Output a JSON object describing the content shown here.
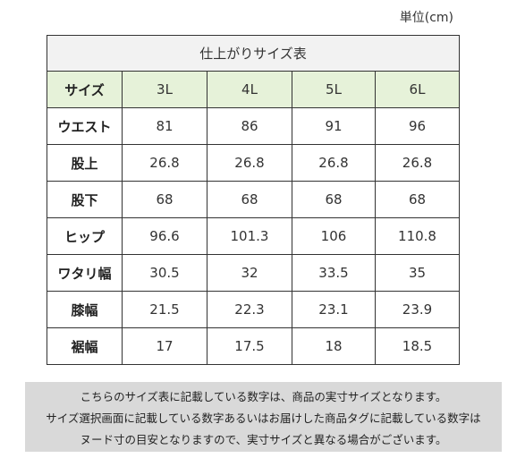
{
  "unit_label": "単位(cm)",
  "table": {
    "caption": "仕上がりサイズ表",
    "header": [
      "サイズ",
      "3L",
      "4L",
      "5L",
      "6L"
    ],
    "rows": [
      {
        "label": "ウエスト",
        "values": [
          "81",
          "86",
          "91",
          "96"
        ]
      },
      {
        "label": "股上",
        "values": [
          "26.8",
          "26.8",
          "26.8",
          "26.8"
        ]
      },
      {
        "label": "股下",
        "values": [
          "68",
          "68",
          "68",
          "68"
        ]
      },
      {
        "label": "ヒップ",
        "values": [
          "96.6",
          "101.3",
          "106",
          "110.8"
        ]
      },
      {
        "label": "ワタリ幅",
        "values": [
          "30.5",
          "32",
          "33.5",
          "35"
        ]
      },
      {
        "label": "膝幅",
        "values": [
          "21.5",
          "22.3",
          "23.1",
          "23.9"
        ]
      },
      {
        "label": "裾幅",
        "values": [
          "17",
          "17.5",
          "18",
          "18.5"
        ]
      }
    ]
  },
  "notice": {
    "lines": [
      "こちらのサイズ表に記載している数字は、商品の実寸サイズとなります。",
      "サイズ選択画面に記載している数字あるいはお届けした商品タグに記載している数字は",
      "ヌード寸の目安となりますので、実寸サイズと異なる場合がございます。"
    ]
  }
}
